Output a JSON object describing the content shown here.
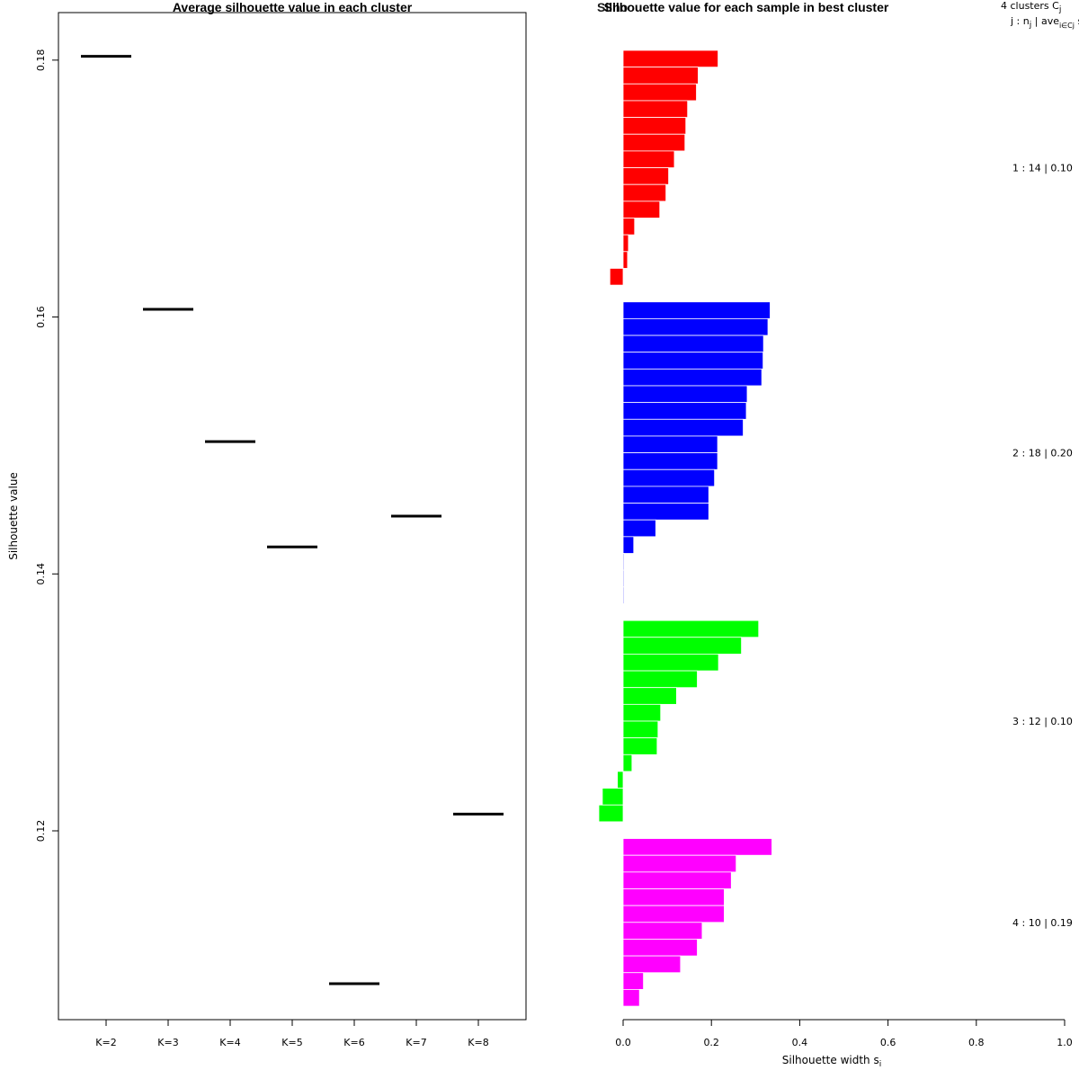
{
  "chart_data": [
    {
      "type": "line",
      "title": "Average silhouette value in each cluster",
      "xlabel": "",
      "ylabel": "Silhouette value",
      "categories": [
        "K=2",
        "K=3",
        "K=4",
        "K=5",
        "K=6",
        "K=7",
        "K=8"
      ],
      "values": [
        0.1803,
        0.1606,
        0.1503,
        0.1421,
        0.1081,
        0.1445,
        0.1213
      ],
      "ylim": [
        0.1053,
        0.1837
      ],
      "yticks": [
        "0.12",
        "0.14",
        "0.16",
        "0.18"
      ],
      "ytick_values": [
        0.12,
        0.14,
        0.16,
        0.18
      ]
    },
    {
      "type": "bar",
      "orientation": "horizontal",
      "title": "Silhouette value for each sample in best cluster",
      "title_overlap": "Silhouette plot of (x = ..., dist = ...)",
      "xlabel": "Silhouette width s",
      "xlabel_sub": "i",
      "xlim": [
        0.0,
        1.0
      ],
      "xticks": [
        "0.0",
        "0.2",
        "0.4",
        "0.6",
        "0.8",
        "1.0"
      ],
      "xtick_values": [
        0.0,
        0.2,
        0.4,
        0.6,
        0.8,
        1.0
      ],
      "legend_header": {
        "line1": "4  clusters  C",
        "line1_sub": "j",
        "line2": "j :  n",
        "line2_sub1": "j",
        "line2_mid": " | ave",
        "line2_sub2": "i∈Cj",
        "line2_end": "  s",
        "line2_sub3": "i"
      },
      "clusters": [
        {
          "id": 1,
          "n": 14,
          "avg": "0.10",
          "label": "1 :  14  |  0.10",
          "color": "#ff0000",
          "values": [
            0.215,
            0.17,
            0.166,
            0.146,
            0.142,
            0.14,
            0.116,
            0.103,
            0.097,
            0.083,
            0.026,
            0.012,
            0.01,
            -0.03
          ]
        },
        {
          "id": 2,
          "n": 18,
          "avg": "0.20",
          "label": "2 :  18  |  0.20",
          "color": "#0000ff",
          "values": [
            0.333,
            0.328,
            0.318,
            0.317,
            0.314,
            0.281,
            0.279,
            0.272,
            0.214,
            0.214,
            0.207,
            0.194,
            0.194,
            0.074,
            0.024,
            0.002,
            0.002,
            0.002
          ]
        },
        {
          "id": 3,
          "n": 12,
          "avg": "0.10",
          "label": "3 :  12  |  0.10",
          "color": "#00ff00",
          "values": [
            0.307,
            0.268,
            0.216,
            0.168,
            0.121,
            0.085,
            0.079,
            0.077,
            0.02,
            -0.013,
            -0.047,
            -0.055
          ]
        },
        {
          "id": 4,
          "n": 10,
          "avg": "0.19",
          "label": "4 :  10  |  0.19",
          "color": "#ff00ff",
          "values": [
            0.337,
            0.256,
            0.245,
            0.229,
            0.229,
            0.179,
            0.168,
            0.13,
            0.046,
            0.037
          ]
        }
      ]
    }
  ]
}
